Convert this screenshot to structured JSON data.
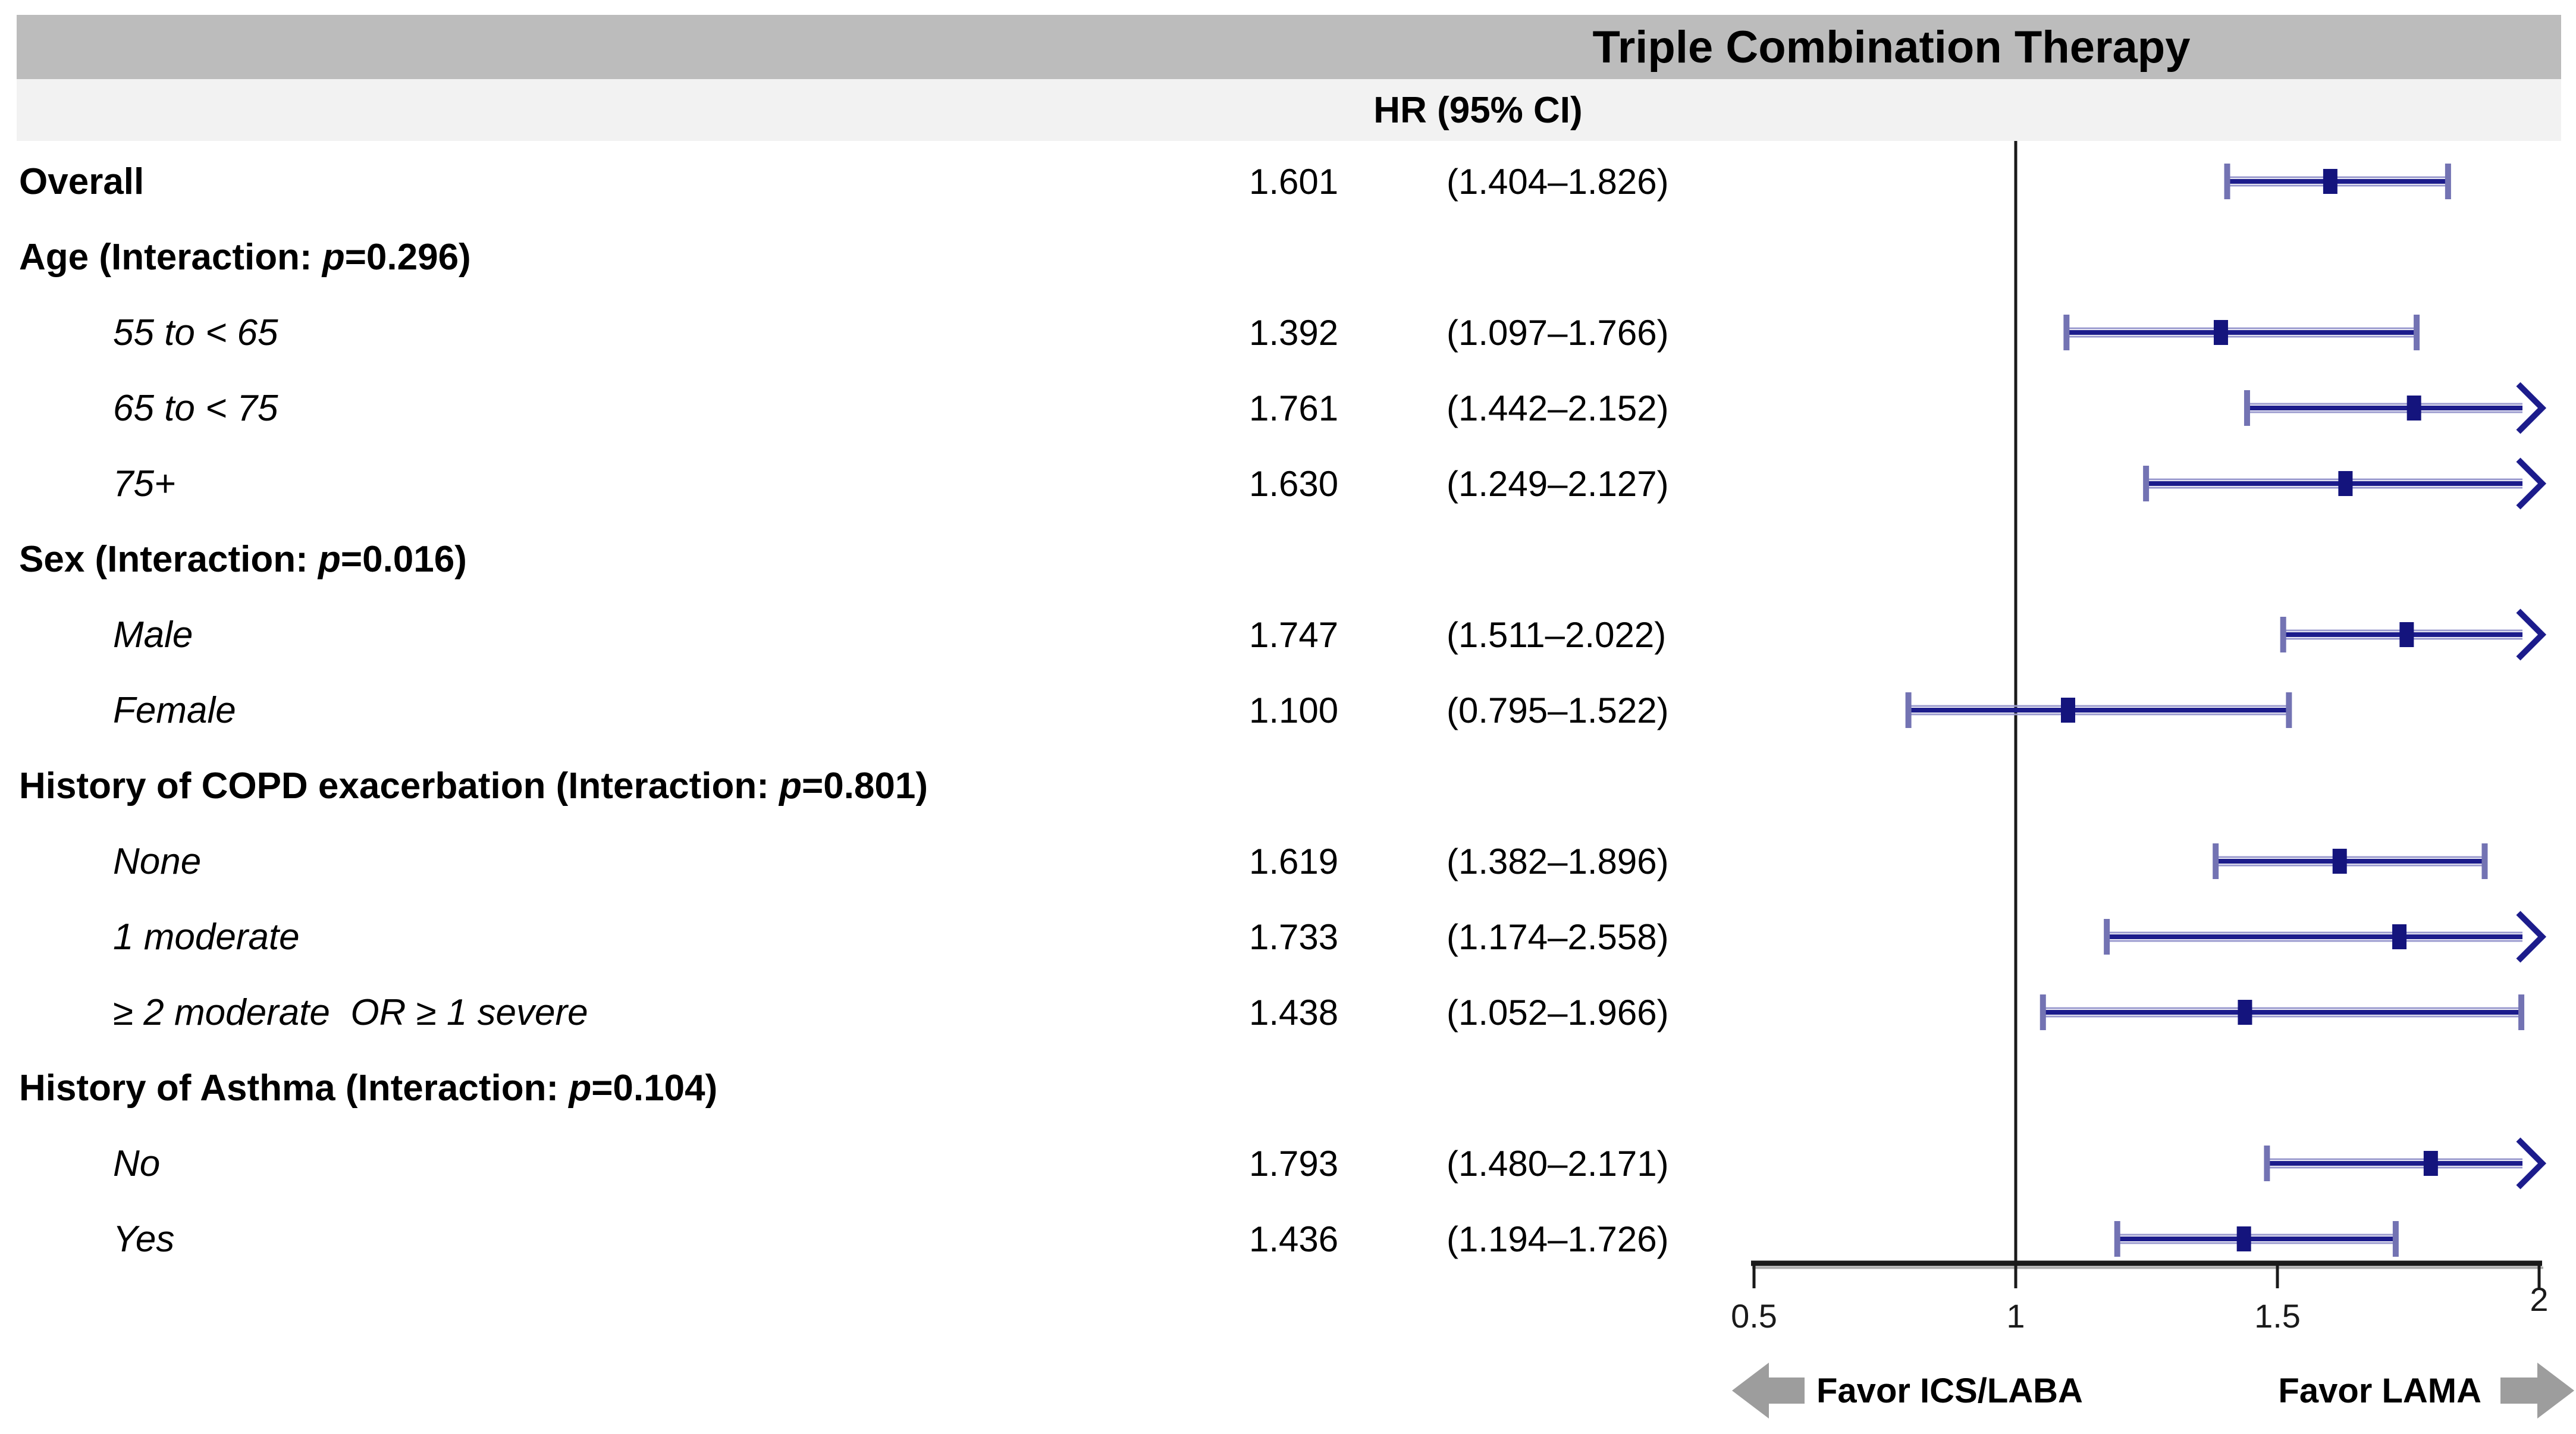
{
  "figure_title": "Triple Combination Therapy",
  "column_header": "HR (95% CI)",
  "favor_left_label": "Favor ICS/LABA",
  "favor_right_label": "Favor LAMA",
  "colors": {
    "header_band": "#bcbcbc",
    "subheader_band": "#f2f2f2",
    "ci_line": "#1c1c8c",
    "ci_line_halo": "#9a9ace",
    "ci_cap": "#7373b3",
    "ci_marker": "#14147d",
    "axis_line": "#1a1a1a",
    "axis_shadow": "#ababab",
    "favor_arrow": "#9d9d9d",
    "text": "#000000"
  },
  "chart_data": {
    "type": "scatter",
    "subtype": "forest-plot",
    "title": "Triple Combination Therapy",
    "column_header": "HR (95% CI)",
    "xlabel": "",
    "xlim": [
      0.5,
      2.0
    ],
    "x_ticks": [
      0.5,
      1,
      1.5,
      2
    ],
    "x_tick_labels": [
      "0.5",
      "1",
      "1.5",
      "2"
    ],
    "reference_line": 1.0,
    "clip_max": 2.0,
    "grid": false,
    "favor_left": "Favor ICS/LABA",
    "favor_right": "Favor LAMA",
    "rows": [
      {
        "kind": "overall",
        "label": "Overall",
        "hr_text": "1.601",
        "ci_text": "(1.404–1.826)",
        "est": 1.601,
        "lo": 1.404,
        "hi": 1.826
      },
      {
        "kind": "group",
        "label": "Age (Interaction: p=0.296)"
      },
      {
        "kind": "item",
        "label": "55 to < 65",
        "hr_text": "1.392",
        "ci_text": "(1.097–1.766)",
        "est": 1.392,
        "lo": 1.097,
        "hi": 1.766
      },
      {
        "kind": "item",
        "label": "65 to < 75",
        "hr_text": "1.761",
        "ci_text": "(1.442–2.152)",
        "est": 1.761,
        "lo": 1.442,
        "hi": 2.152
      },
      {
        "kind": "item",
        "label": "75+",
        "hr_text": "1.630",
        "ci_text": "(1.249–2.127)",
        "est": 1.63,
        "lo": 1.249,
        "hi": 2.127
      },
      {
        "kind": "group",
        "label": "Sex (Interaction: p=0.016)"
      },
      {
        "kind": "item",
        "label": "Male",
        "hr_text": "1.747",
        "ci_text": "(1.511–2.022)",
        "est": 1.747,
        "lo": 1.511,
        "hi": 2.022
      },
      {
        "kind": "item",
        "label": "Female",
        "hr_text": "1.100",
        "ci_text": "(0.795–1.522)",
        "est": 1.1,
        "lo": 0.795,
        "hi": 1.522
      },
      {
        "kind": "group",
        "label": "History of COPD exacerbation (Interaction: p=0.801)"
      },
      {
        "kind": "item",
        "label": "None",
        "hr_text": "1.619",
        "ci_text": "(1.382–1.896)",
        "est": 1.619,
        "lo": 1.382,
        "hi": 1.896
      },
      {
        "kind": "item",
        "label": "1 moderate",
        "hr_text": "1.733",
        "ci_text": "(1.174–2.558)",
        "est": 1.733,
        "lo": 1.174,
        "hi": 2.558
      },
      {
        "kind": "item",
        "label": "≥ 2 moderate  OR ≥ 1 severe",
        "hr_text": "1.438",
        "ci_text": "(1.052–1.966)",
        "est": 1.438,
        "lo": 1.052,
        "hi": 1.966
      },
      {
        "kind": "group",
        "label": "History of Asthma (Interaction: p=0.104)"
      },
      {
        "kind": "item",
        "label": "No",
        "hr_text": "1.793",
        "ci_text": "(1.480–2.171)",
        "est": 1.793,
        "lo": 1.48,
        "hi": 2.171
      },
      {
        "kind": "item",
        "label": "Yes",
        "hr_text": "1.436",
        "ci_text": "(1.194–1.726)",
        "est": 1.436,
        "lo": 1.194,
        "hi": 1.726
      }
    ]
  }
}
